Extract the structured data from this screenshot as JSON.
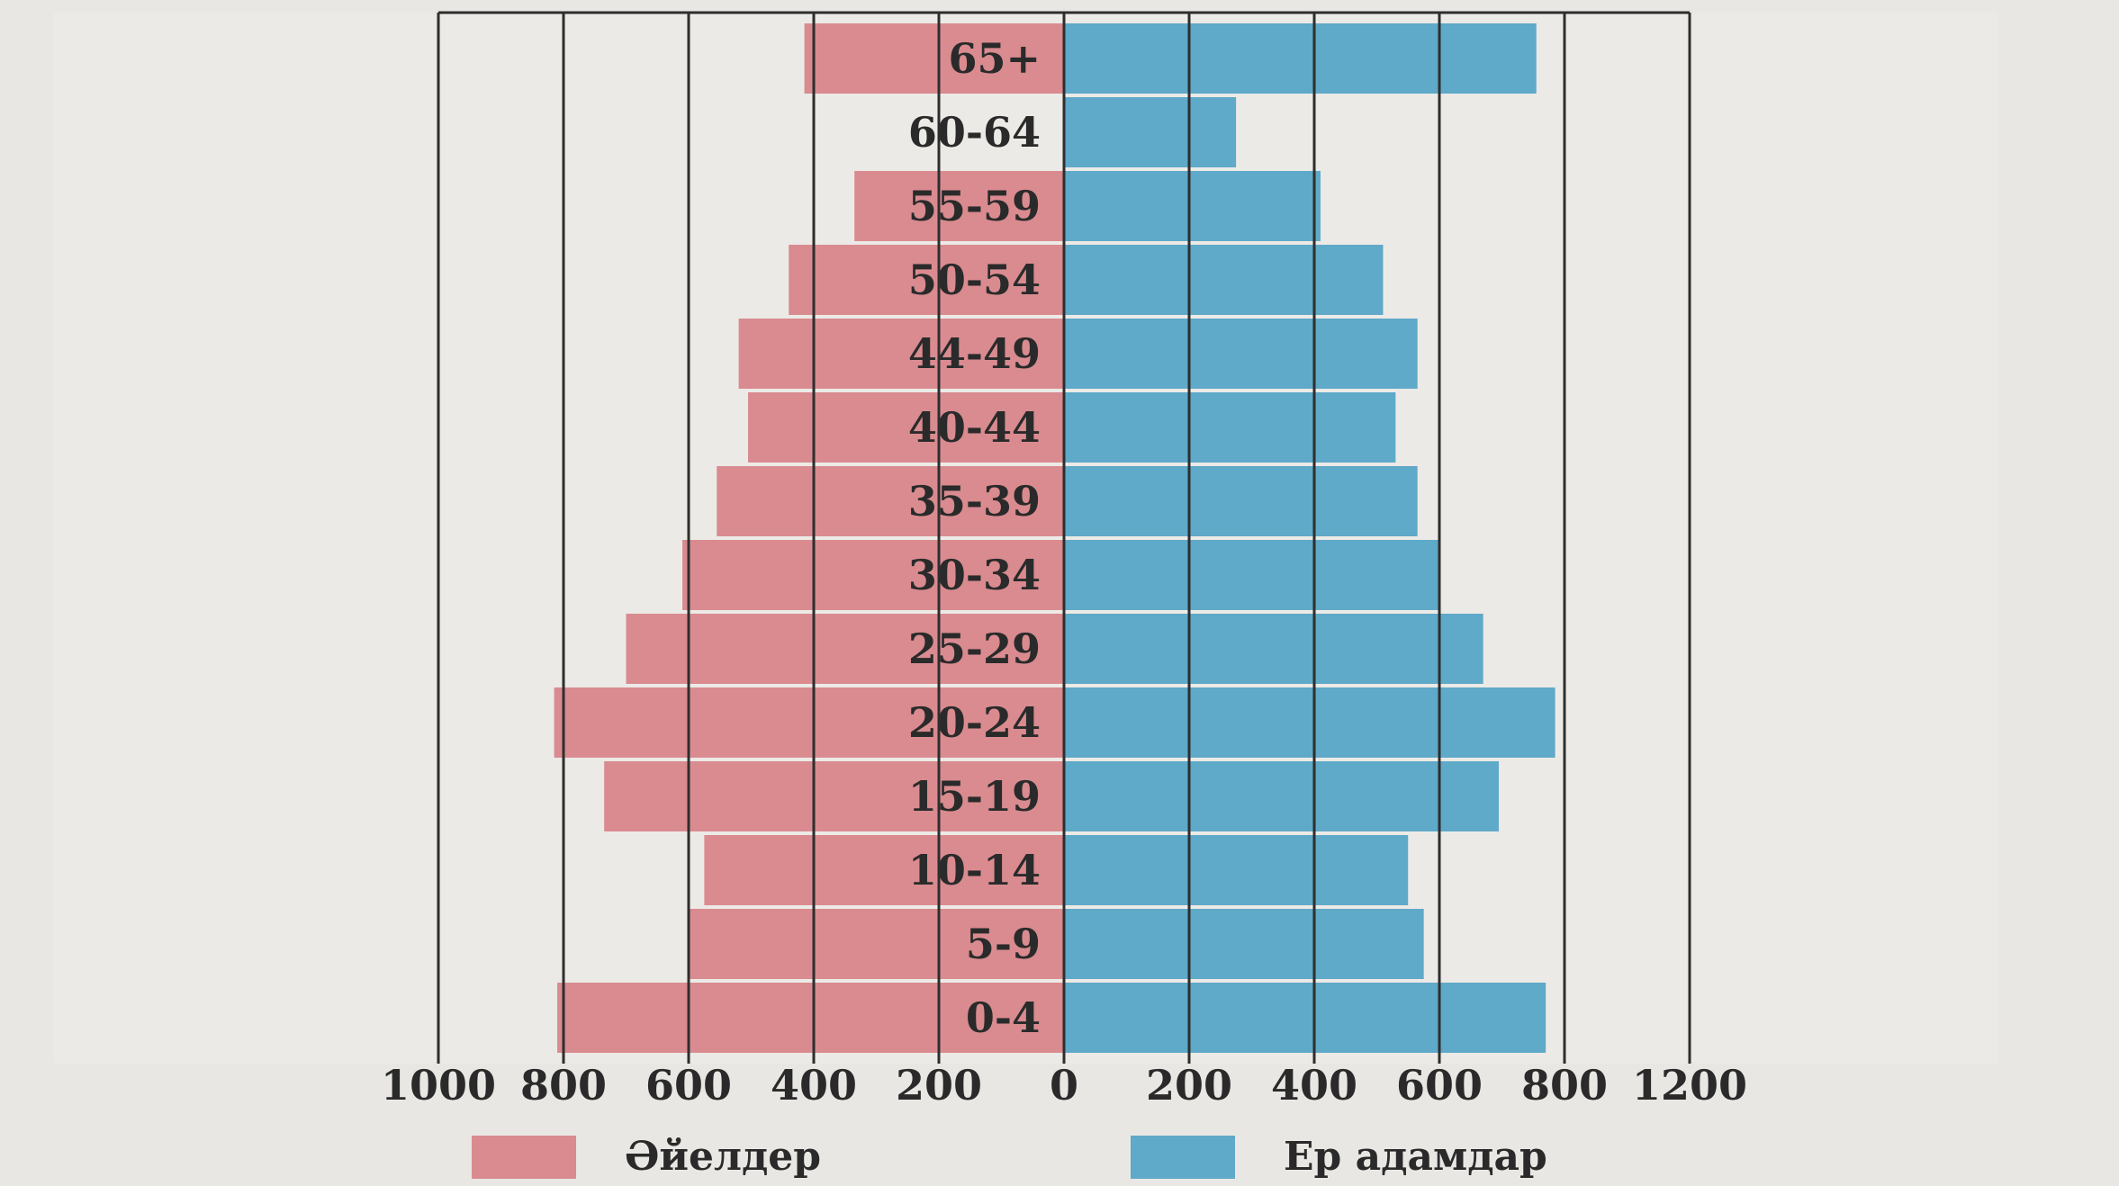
{
  "chart_data": {
    "type": "bar",
    "orientation": "horizontal",
    "layout": "population-pyramid",
    "categories": [
      "0-4",
      "5-9",
      "10-14",
      "15-19",
      "20-24",
      "25-29",
      "30-34",
      "35-39",
      "40-44",
      "44-49",
      "50-54",
      "55-59",
      "60-64",
      "65+"
    ],
    "series": [
      {
        "name": "Әйелдер",
        "side": "left",
        "color": "#d98b90",
        "values": [
          810,
          600,
          575,
          735,
          815,
          700,
          610,
          555,
          505,
          520,
          440,
          335,
          0,
          415
        ]
      },
      {
        "name": "Ер адамдар",
        "side": "right",
        "color": "#5fa9c9",
        "values": [
          770,
          575,
          550,
          695,
          785,
          670,
          600,
          565,
          530,
          565,
          510,
          410,
          275,
          755
        ]
      }
    ],
    "x_ticks_left": [
      "1000",
      "800",
      "600",
      "400",
      "200",
      "0"
    ],
    "x_ticks_right": [
      "200",
      "400",
      "600",
      "800",
      "1200"
    ],
    "xlim_left": [
      1000,
      0
    ],
    "xlim_right": [
      0,
      1000
    ],
    "grid": "vertical",
    "legend_position": "bottom"
  }
}
